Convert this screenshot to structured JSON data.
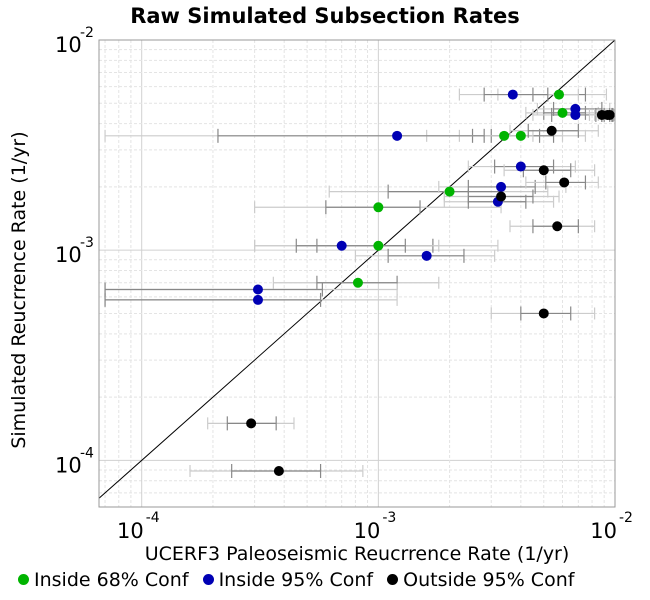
{
  "chart_data": {
    "type": "scatter",
    "title": "Raw Simulated Subsection Rates",
    "xlabel": "UCERF3 Paleoseismic Reucrrence Rate (1/yr)",
    "ylabel": "Simulated Reucrrence Rate (1/yr)",
    "xscale": "log",
    "yscale": "log",
    "xlim": [
      6.6e-05,
      0.01
    ],
    "ylim": [
      6e-05,
      0.01
    ],
    "x_ticks": [
      "10^-4",
      "10^-3",
      "10^-2"
    ],
    "y_ticks": [
      "10^-4",
      "10^-3",
      "10^-2"
    ],
    "grid": true,
    "reference_line": "y = x",
    "legend_position": "bottom",
    "colors": {
      "inside68": "#00b400",
      "inside95": "#0000b4",
      "outside95": "#000000",
      "ci68": "#888888",
      "ci95": "#cccccc",
      "oneToOne": "#000000"
    },
    "series": [
      {
        "name": "Inside 68% Conf",
        "color_key": "inside68",
        "points": [
          {
            "x": 0.0058,
            "y": 0.0055,
            "ci68": [
              0.0045,
              0.0075
            ],
            "ci95": [
              0.0032,
              0.0092
            ]
          },
          {
            "x": 0.006,
            "y": 0.0045,
            "ci68": [
              0.005,
              0.0075
            ],
            "ci95": [
              0.0042,
              0.0085
            ]
          },
          {
            "x": 0.0034,
            "y": 0.0035,
            "ci68": [
              0.0025,
              0.0048
            ],
            "ci95": [
              0.0016,
              0.006
            ]
          },
          {
            "x": 0.004,
            "y": 0.0035,
            "ci68": [
              0.003,
              0.0055
            ],
            "ci95": [
              0.0022,
              0.0075
            ]
          },
          {
            "x": 0.002,
            "y": 0.0019,
            "ci68": [
              0.0011,
              0.0033
            ],
            "ci95": [
              0.00062,
              0.0052
            ]
          },
          {
            "x": 0.001,
            "y": 0.0016,
            "ci68": [
              0.0006,
              0.0015
            ],
            "ci95": [
              0.0003,
              0.0033
            ]
          },
          {
            "x": 0.001,
            "y": 0.00105,
            "ci68": [
              0.00055,
              0.0017
            ],
            "ci95": [
              0.0003,
              0.0032
            ]
          },
          {
            "x": 0.00082,
            "y": 0.0007,
            "ci68": [
              0.00055,
              0.0012
            ],
            "ci95": [
              0.00036,
              0.0018
            ]
          }
        ]
      },
      {
        "name": "Inside 95% Conf",
        "color_key": "inside95",
        "points": [
          {
            "x": 0.0037,
            "y": 0.0055,
            "ci68": [
              0.0028,
              0.0052
            ],
            "ci95": [
              0.0022,
              0.007
            ]
          },
          {
            "x": 0.0068,
            "y": 0.0047,
            "ci68": [
              0.0055,
              0.0088
            ],
            "ci95": [
              0.0047,
              0.0095
            ]
          },
          {
            "x": 0.0068,
            "y": 0.0044,
            "ci68": [
              0.0054,
              0.0088
            ],
            "ci95": [
              0.0045,
              0.0095
            ]
          },
          {
            "x": 0.0012,
            "y": 0.0035,
            "ci68": [
              0.00021,
              0.0028
            ],
            "ci95": [
              7e-05,
              0.0045
            ]
          },
          {
            "x": 0.004,
            "y": 0.0025,
            "ci68": [
              0.0031,
              0.0055
            ],
            "ci95": [
              0.0024,
              0.0068
            ]
          },
          {
            "x": 0.0033,
            "y": 0.002,
            "ci68": [
              0.0024,
              0.0046
            ],
            "ci95": [
              0.0018,
              0.0062
            ]
          },
          {
            "x": 0.0032,
            "y": 0.0017,
            "ci68": [
              0.0024,
              0.0042
            ],
            "ci95": [
              0.0019,
              0.0055
            ]
          },
          {
            "x": 0.0007,
            "y": 0.00105,
            "ci68": [
              0.00045,
              0.0013
            ],
            "ci95": [
              0.0003,
              0.0018
            ]
          },
          {
            "x": 0.0016,
            "y": 0.00094,
            "ci68": [
              0.0011,
              0.0023
            ],
            "ci95": [
              0.0008,
              0.0031
            ]
          },
          {
            "x": 0.00031,
            "y": 0.00065,
            "ci68": [
              7e-05,
              0.00058
            ],
            "ci95": [
              7e-05,
              0.0012
            ]
          },
          {
            "x": 0.00031,
            "y": 0.00058,
            "ci68": [
              7e-05,
              0.00057
            ],
            "ci95": [
              7e-05,
              0.0012
            ]
          }
        ]
      },
      {
        "name": "Outside 95% Conf",
        "color_key": "outside95",
        "points": [
          {
            "x": 0.0088,
            "y": 0.0044,
            "ci68": [
              0.0083,
              0.0095
            ],
            "ci95": [
              0.0078,
              0.0098
            ]
          },
          {
            "x": 0.0093,
            "y": 0.0044,
            "ci68": [
              0.0088,
              0.0097
            ],
            "ci95": [
              0.0082,
              0.0099
            ]
          },
          {
            "x": 0.0095,
            "y": 0.0044,
            "ci68": [
              0.009,
              0.0098
            ],
            "ci95": [
              0.0085,
              0.0099
            ]
          },
          {
            "x": 0.0054,
            "y": 0.0037,
            "ci68": [
              0.0043,
              0.007
            ],
            "ci95": [
              0.0036,
              0.0085
            ]
          },
          {
            "x": 0.005,
            "y": 0.0024,
            "ci68": [
              0.0041,
              0.0065
            ],
            "ci95": [
              0.0034,
              0.0082
            ]
          },
          {
            "x": 0.0033,
            "y": 0.0018,
            "ci68": [
              0.0024,
              0.0045
            ],
            "ci95": [
              0.0019,
              0.0058
            ]
          },
          {
            "x": 0.0061,
            "y": 0.0021,
            "ci68": [
              0.0051,
              0.0075
            ],
            "ci95": [
              0.0042,
              0.0085
            ]
          },
          {
            "x": 0.0057,
            "y": 0.0013,
            "ci68": [
              0.0045,
              0.007
            ],
            "ci95": [
              0.0036,
              0.0082
            ]
          },
          {
            "x": 0.005,
            "y": 0.0005,
            "ci68": [
              0.004,
              0.0065
            ],
            "ci95": [
              0.003,
              0.0082
            ]
          },
          {
            "x": 0.00029,
            "y": 0.00015,
            "ci68": [
              0.00023,
              0.00037
            ],
            "ci95": [
              0.00019,
              0.00044
            ]
          },
          {
            "x": 0.00038,
            "y": 8.9e-05,
            "ci68": [
              0.00024,
              0.00057
            ],
            "ci95": [
              0.00016,
              0.00086
            ]
          }
        ]
      }
    ]
  },
  "legend": [
    {
      "label": "Inside 68% Conf",
      "color": "#00b400"
    },
    {
      "label": "Inside 95% Conf",
      "color": "#0000b4"
    },
    {
      "label": "Outside 95% Conf",
      "color": "#000000"
    }
  ]
}
